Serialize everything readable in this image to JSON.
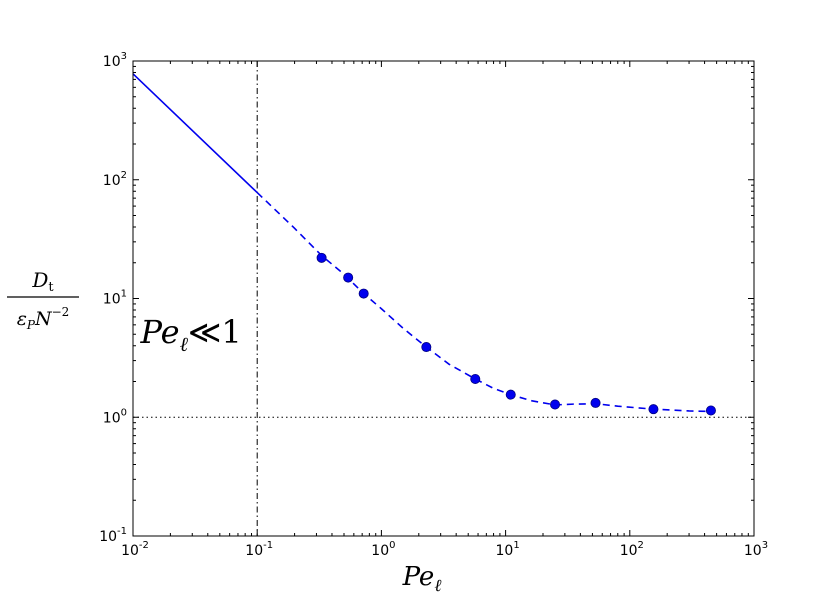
{
  "chart_data": {
    "type": "scatter",
    "x_scale": "log",
    "y_scale": "log",
    "xlim": [
      0.01,
      1000
    ],
    "ylim": [
      0.1,
      1000
    ],
    "x_ticks": [
      {
        "value": 0.01,
        "base": "10",
        "exp": "-2"
      },
      {
        "value": 0.1,
        "base": "10",
        "exp": "-1"
      },
      {
        "value": 1,
        "base": "10",
        "exp": "0"
      },
      {
        "value": 10,
        "base": "10",
        "exp": "1"
      },
      {
        "value": 100,
        "base": "10",
        "exp": "2"
      },
      {
        "value": 1000,
        "base": "10",
        "exp": "3"
      }
    ],
    "y_ticks": [
      {
        "value": 0.1,
        "base": "10",
        "exp": "-1"
      },
      {
        "value": 1,
        "base": "10",
        "exp": "0"
      },
      {
        "value": 10,
        "base": "10",
        "exp": "1"
      },
      {
        "value": 100,
        "base": "10",
        "exp": "2"
      },
      {
        "value": 1000,
        "base": "10",
        "exp": "3"
      }
    ],
    "xlabel": {
      "main": "Pe",
      "sub": "ℓ"
    },
    "ylabel": {
      "num_main": "D",
      "num_sub": "t",
      "den_main": "ε",
      "den_sub": "P",
      "den_n": "N",
      "den_exp": "−2"
    },
    "annotation": {
      "main": "Pe",
      "sub": "ℓ",
      "rel": "≪1",
      "x": 0.0115,
      "y": 4.2
    },
    "color": "#0000ee",
    "series": [
      {
        "values": [
          {
            "x": 0.33,
            "y": 22
          },
          {
            "x": 0.54,
            "y": 15
          },
          {
            "x": 0.72,
            "y": 11
          },
          {
            "x": 2.3,
            "y": 3.9
          },
          {
            "x": 5.7,
            "y": 2.1
          },
          {
            "x": 11,
            "y": 1.55
          },
          {
            "x": 25,
            "y": 1.28
          },
          {
            "x": 53,
            "y": 1.32
          },
          {
            "x": 155,
            "y": 1.17
          },
          {
            "x": 450,
            "y": 1.14
          }
        ]
      }
    ],
    "asymptote_solid": [
      {
        "x": 0.01,
        "y": 780
      },
      {
        "x": 0.1,
        "y": 78
      }
    ],
    "fit_dashed": [
      {
        "x": 0.1,
        "y": 78
      },
      {
        "x": 0.15,
        "y": 52
      },
      {
        "x": 0.2,
        "y": 39
      },
      {
        "x": 0.33,
        "y": 23
      },
      {
        "x": 0.5,
        "y": 16
      },
      {
        "x": 0.72,
        "y": 11
      },
      {
        "x": 1.0,
        "y": 8.2
      },
      {
        "x": 1.5,
        "y": 5.6
      },
      {
        "x": 2.3,
        "y": 3.9
      },
      {
        "x": 3.5,
        "y": 2.8
      },
      {
        "x": 5.7,
        "y": 2.1
      },
      {
        "x": 8,
        "y": 1.75
      },
      {
        "x": 11,
        "y": 1.55
      },
      {
        "x": 16,
        "y": 1.38
      },
      {
        "x": 25,
        "y": 1.27
      },
      {
        "x": 35,
        "y": 1.29
      },
      {
        "x": 53,
        "y": 1.3
      },
      {
        "x": 80,
        "y": 1.24
      },
      {
        "x": 155,
        "y": 1.17
      },
      {
        "x": 300,
        "y": 1.13
      },
      {
        "x": 450,
        "y": 1.12
      }
    ],
    "hline_dotted": 1,
    "vline_dashdot": 0.1,
    "grid": false,
    "legend": "none"
  }
}
